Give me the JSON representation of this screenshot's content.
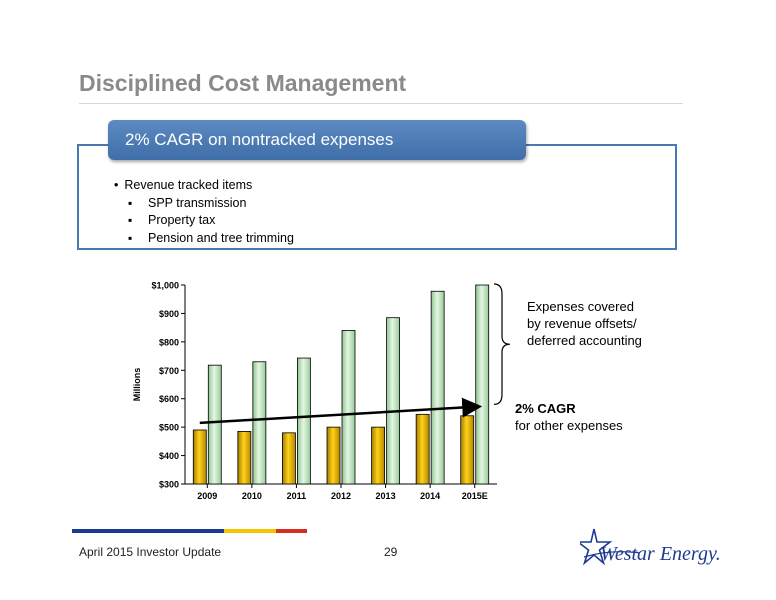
{
  "slide": {
    "title": "Disciplined Cost Management",
    "callout": "2% CAGR on nontracked expenses",
    "bullets": {
      "main": "Revenue tracked items",
      "sub": [
        "SPP transmission",
        "Property tax",
        "Pension and tree trimming"
      ]
    },
    "annotations": {
      "brace_text": [
        "Expenses covered",
        "by revenue offsets/",
        "deferred accounting"
      ],
      "cagr_bold": "2% CAGR",
      "cagr_text": "for other expenses"
    },
    "footer": {
      "left": "April 2015 Investor Update",
      "page": "29",
      "logo_text": "Westar Energy."
    },
    "colors": {
      "title": "#8a8a8a",
      "accent_blue": "#4a78b0",
      "bar_gold": "#d9a400",
      "bar_green": "#b7dfb7",
      "footer_blue": "#1f3a93",
      "footer_yellow": "#f2c500",
      "footer_red": "#d62d20"
    }
  },
  "chart_data": {
    "type": "bar",
    "categories": [
      "2009",
      "2010",
      "2011",
      "2012",
      "2013",
      "2014",
      "2015E"
    ],
    "series": [
      {
        "values": [
          490,
          485,
          480,
          500,
          500,
          545,
          540
        ]
      },
      {
        "values": [
          718,
          730,
          743,
          840,
          885,
          978,
          1000
        ]
      }
    ],
    "ylabel": "Millions",
    "ylim": [
      300,
      1000
    ],
    "yticks": [
      300,
      400,
      500,
      600,
      700,
      800,
      900,
      1000
    ],
    "ytick_labels": [
      "$300",
      "$400",
      "$500",
      "$600",
      "$700",
      "$800",
      "$900",
      "$1,000"
    ],
    "trend_line": {
      "from": 515,
      "to": 572
    },
    "grid": false,
    "legend": "none"
  }
}
